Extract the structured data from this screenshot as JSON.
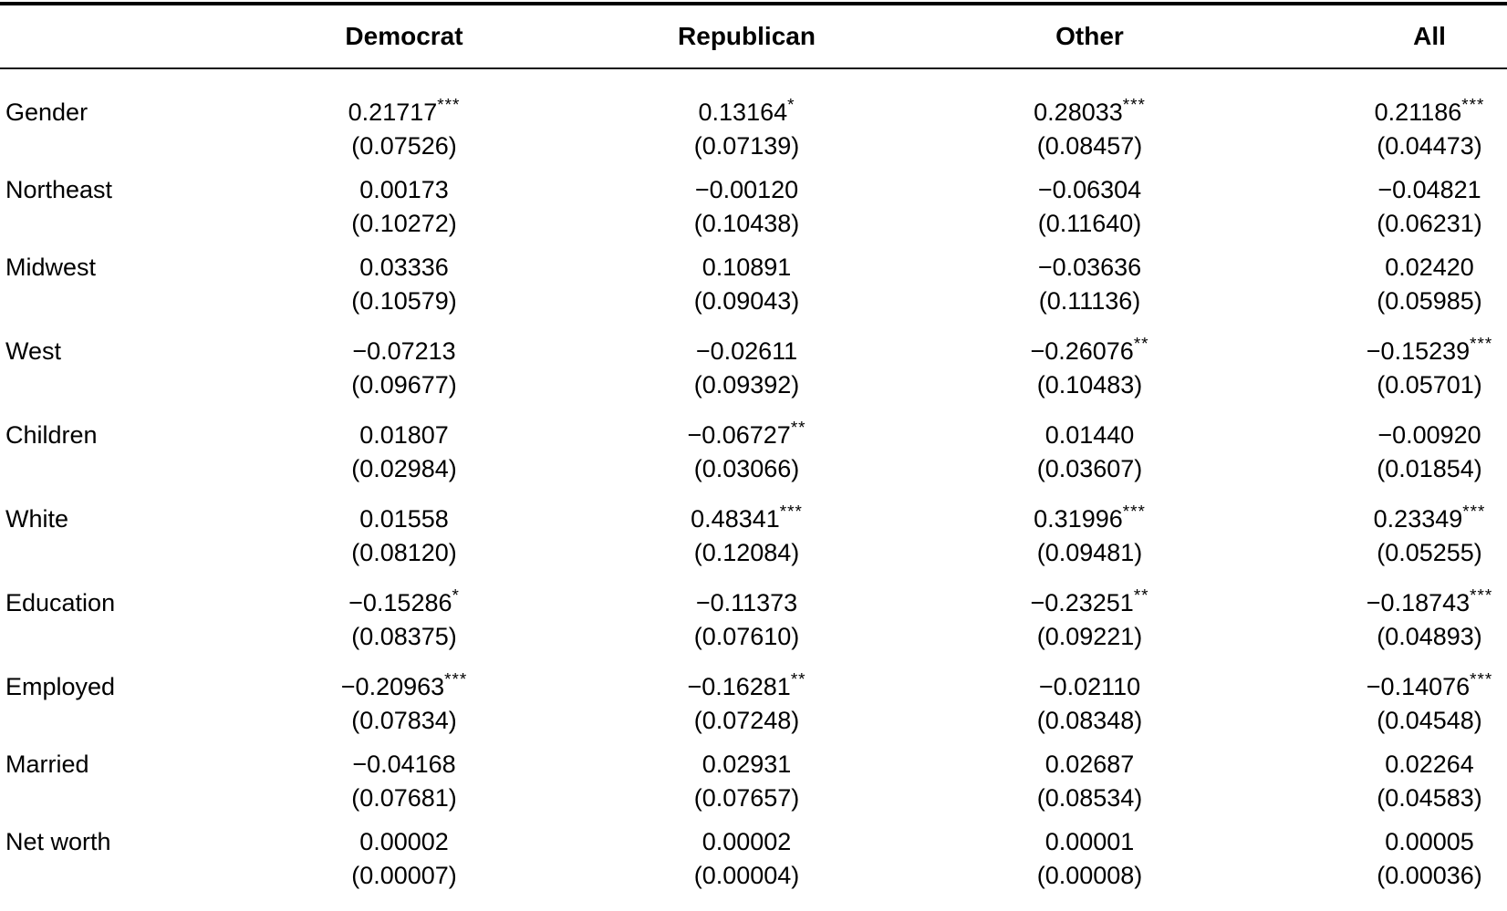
{
  "colors": {
    "background": "#ffffff",
    "text": "#000000",
    "rule": "#000000"
  },
  "table": {
    "columns": [
      "Democrat",
      "Republican",
      "Other",
      "All"
    ],
    "rows": [
      {
        "label": "Gender",
        "cells": [
          {
            "coef": "0.21717",
            "stars": "***",
            "se": "(0.07526)"
          },
          {
            "coef": "0.13164",
            "stars": "*",
            "se": "(0.07139)"
          },
          {
            "coef": "0.28033",
            "stars": "***",
            "se": "(0.08457)"
          },
          {
            "coef": "0.21186",
            "stars": "***",
            "se": "(0.04473)"
          }
        ]
      },
      {
        "label": "Northeast",
        "cells": [
          {
            "coef": "0.00173",
            "stars": "",
            "se": "(0.10272)"
          },
          {
            "coef": "−0.00120",
            "stars": "",
            "se": "(0.10438)"
          },
          {
            "coef": "−0.06304",
            "stars": "",
            "se": "(0.11640)"
          },
          {
            "coef": "−0.04821",
            "stars": "",
            "se": "(0.06231)"
          }
        ]
      },
      {
        "label": "Midwest",
        "cells": [
          {
            "coef": "0.03336",
            "stars": "",
            "se": "(0.10579)"
          },
          {
            "coef": "0.10891",
            "stars": "",
            "se": "(0.09043)"
          },
          {
            "coef": "−0.03636",
            "stars": "",
            "se": "(0.11136)"
          },
          {
            "coef": "0.02420",
            "stars": "",
            "se": "(0.05985)"
          }
        ]
      },
      {
        "label": "West",
        "cells": [
          {
            "coef": "−0.07213",
            "stars": "",
            "se": "(0.09677)"
          },
          {
            "coef": "−0.02611",
            "stars": "",
            "se": "(0.09392)"
          },
          {
            "coef": "−0.26076",
            "stars": "**",
            "se": "(0.10483)"
          },
          {
            "coef": "−0.15239",
            "stars": "***",
            "se": "(0.05701)"
          }
        ]
      },
      {
        "label": "Children",
        "cells": [
          {
            "coef": "0.01807",
            "stars": "",
            "se": "(0.02984)"
          },
          {
            "coef": "−0.06727",
            "stars": "**",
            "se": "(0.03066)"
          },
          {
            "coef": "0.01440",
            "stars": "",
            "se": "(0.03607)"
          },
          {
            "coef": "−0.00920",
            "stars": "",
            "se": "(0.01854)"
          }
        ]
      },
      {
        "label": "White",
        "cells": [
          {
            "coef": "0.01558",
            "stars": "",
            "se": "(0.08120)"
          },
          {
            "coef": "0.48341",
            "stars": "***",
            "se": "(0.12084)"
          },
          {
            "coef": "0.31996",
            "stars": "***",
            "se": "(0.09481)"
          },
          {
            "coef": "0.23349",
            "stars": "***",
            "se": "(0.05255)"
          }
        ]
      },
      {
        "label": "Education",
        "cells": [
          {
            "coef": "−0.15286",
            "stars": "*",
            "se": "(0.08375)"
          },
          {
            "coef": "−0.11373",
            "stars": "",
            "se": "(0.07610)"
          },
          {
            "coef": "−0.23251",
            "stars": "**",
            "se": "(0.09221)"
          },
          {
            "coef": "−0.18743",
            "stars": "***",
            "se": "(0.04893)"
          }
        ]
      },
      {
        "label": "Employed",
        "cells": [
          {
            "coef": "−0.20963",
            "stars": "***",
            "se": "(0.07834)"
          },
          {
            "coef": "−0.16281",
            "stars": "**",
            "se": "(0.07248)"
          },
          {
            "coef": "−0.02110",
            "stars": "",
            "se": "(0.08348)"
          },
          {
            "coef": "−0.14076",
            "stars": "***",
            "se": "(0.04548)"
          }
        ]
      },
      {
        "label": "Married",
        "cells": [
          {
            "coef": "−0.04168",
            "stars": "",
            "se": "(0.07681)"
          },
          {
            "coef": "0.02931",
            "stars": "",
            "se": "(0.07657)"
          },
          {
            "coef": "0.02687",
            "stars": "",
            "se": "(0.08534)"
          },
          {
            "coef": "0.02264",
            "stars": "",
            "se": "(0.04583)"
          }
        ]
      },
      {
        "label": "Net worth",
        "cells": [
          {
            "coef": "0.00002",
            "stars": "",
            "se": "(0.00007)"
          },
          {
            "coef": "0.00002",
            "stars": "",
            "se": "(0.00004)"
          },
          {
            "coef": "0.00001",
            "stars": "",
            "se": "(0.00008)"
          },
          {
            "coef": "0.00005",
            "stars": "",
            "se": "(0.00036)"
          }
        ]
      }
    ]
  }
}
